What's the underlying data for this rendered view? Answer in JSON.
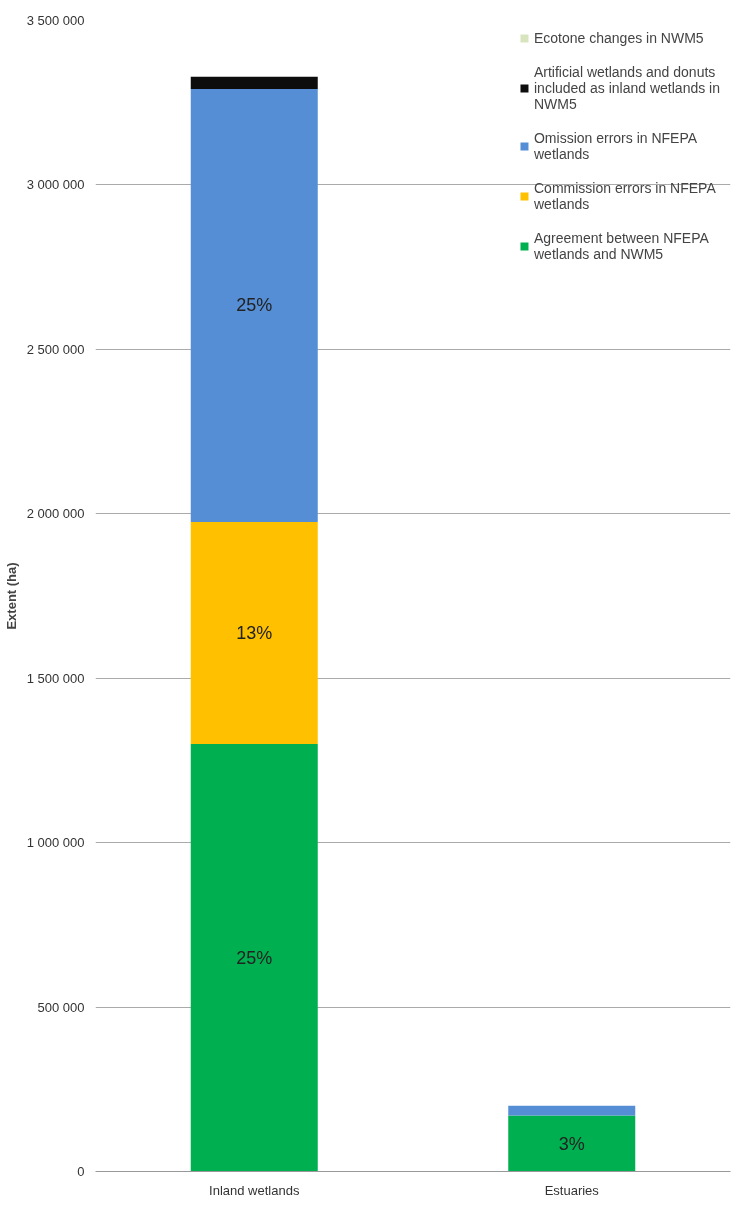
{
  "chart_data": {
    "type": "bar",
    "stacked": true,
    "ylabel": "Extent (ha)",
    "categories": [
      "Inland wetlands",
      "Estuaries"
    ],
    "series": [
      {
        "name": "Agreement between NFEPA wetlands and NWM5",
        "color": "#00b050",
        "values": [
          1300000,
          170000
        ]
      },
      {
        "name": "Commission errors in NFEPA wetlands",
        "color": "#ffc000",
        "values": [
          675000,
          0
        ]
      },
      {
        "name": "Omission errors in NFEPA wetlands",
        "color": "#558ed5",
        "values": [
          1317000,
          30000
        ]
      },
      {
        "name": "Artificial wetlands and donuts included as inland wetlands in NWM5",
        "color": "#0d0d0d",
        "values": [
          37000,
          0
        ]
      },
      {
        "name": "Ecotone changes in NWM5",
        "color": "#d7e4bd",
        "values": [
          0,
          0
        ]
      }
    ],
    "ylim": [
      0,
      3500000
    ],
    "yticks": [
      {
        "value": 0,
        "label": "0"
      },
      {
        "value": 500000,
        "label": "500 000"
      },
      {
        "value": 1000000,
        "label": "1 000 000"
      },
      {
        "value": 1500000,
        "label": "1 500 000"
      },
      {
        "value": 2000000,
        "label": "2 000 000"
      },
      {
        "value": 2500000,
        "label": "2 500 000"
      },
      {
        "value": 3000000,
        "label": "3 000 000"
      },
      {
        "value": 3500000,
        "label": "3 500 000"
      }
    ],
    "annotations": [
      "25%",
      "13%",
      "25%",
      "3%"
    ],
    "grid": "y",
    "legend": "top right"
  }
}
